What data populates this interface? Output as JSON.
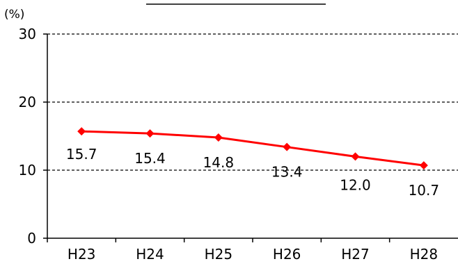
{
  "chart_data": {
    "type": "line",
    "title": "",
    "xlabel": "",
    "ylabel": "",
    "unit_label": "(%)",
    "categories": [
      "H23",
      "H24",
      "H25",
      "H26",
      "H27",
      "H28"
    ],
    "series": [
      {
        "values": [
          15.7,
          15.4,
          14.8,
          13.4,
          12.0,
          10.7
        ],
        "color": "#ff0000",
        "marker": "diamond"
      }
    ],
    "data_labels": [
      "15.7",
      "15.4",
      "14.8",
      "13.4",
      "12.0",
      "10.7"
    ],
    "y_ticks": [
      0,
      10,
      20,
      30
    ],
    "ylim": [
      0,
      30
    ],
    "grid": "dashed horizontal",
    "legend": "none"
  }
}
